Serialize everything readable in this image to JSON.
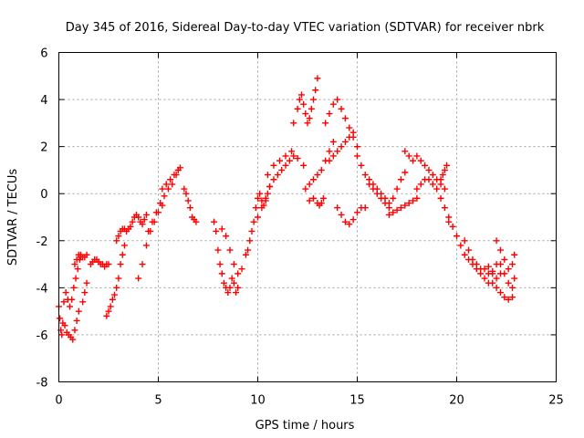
{
  "chart_data": {
    "type": "scatter",
    "title": "Day 345 of 2016, Sidereal Day-to-day VTEC variation (SDTVAR) for receiver nbrk",
    "xlabel": "GPS time / hours",
    "ylabel": "SDTVAR / TECUs",
    "xlim": [
      0,
      25
    ],
    "ylim": [
      -8,
      6
    ],
    "xticks": [
      "0",
      "5",
      "10",
      "15",
      "20",
      "25"
    ],
    "yticks": [
      "-8",
      "-6",
      "-4",
      "-2",
      "0",
      "2",
      "4",
      "6"
    ],
    "grid": true,
    "marker": "plus",
    "color": "#ff0000",
    "series": [
      {
        "name": "nbrk",
        "x": [
          0.0,
          0.05,
          0.1,
          0.15,
          0.2,
          0.25,
          0.35,
          0.45,
          0.55,
          0.65,
          0.75,
          0.85,
          0.95,
          1.05,
          1.1,
          0.3,
          0.4,
          0.5,
          0.6,
          0.7,
          0.8,
          0.9,
          1.0,
          1.2,
          1.3,
          1.4,
          0.8,
          0.9,
          1.0,
          1.1,
          1.2,
          1.3,
          1.4,
          1.6,
          1.7,
          1.8,
          1.9,
          2.0,
          2.1,
          2.2,
          2.3,
          2.4,
          2.5,
          2.4,
          2.5,
          2.6,
          2.7,
          2.8,
          2.9,
          3.0,
          3.1,
          3.2,
          3.3,
          2.9,
          3.0,
          3.1,
          3.2,
          3.3,
          3.4,
          3.5,
          3.6,
          3.7,
          3.8,
          3.9,
          4.0,
          4.1,
          4.2,
          4.3,
          4.4,
          4.0,
          4.2,
          4.4,
          4.6,
          4.8,
          5.0,
          5.2,
          4.5,
          4.7,
          4.9,
          5.1,
          5.3,
          5.5,
          5.7,
          5.9,
          6.0,
          6.1,
          5.2,
          5.4,
          5.6,
          5.8,
          6.0,
          6.3,
          6.4,
          6.5,
          6.6,
          6.7,
          6.8,
          6.9,
          7.8,
          7.9,
          8.0,
          8.1,
          8.2,
          8.3,
          8.4,
          8.5,
          8.6,
          8.7,
          8.8,
          8.9,
          9.0,
          8.2,
          8.4,
          8.6,
          8.8,
          9.0,
          9.2,
          9.4,
          9.5,
          9.6,
          9.7,
          9.8,
          9.9,
          10.0,
          10.1,
          10.2,
          10.3,
          10.4,
          10.5,
          10.6,
          10.0,
          10.2,
          10.4,
          10.6,
          10.8,
          11.0,
          11.2,
          11.4,
          11.6,
          11.8,
          10.5,
          10.8,
          11.1,
          11.4,
          11.7,
          12.0,
          12.3,
          11.8,
          12.0,
          12.1,
          12.2,
          12.3,
          12.4,
          12.5,
          12.6,
          12.7,
          12.8,
          12.9,
          13.0,
          12.4,
          12.6,
          12.8,
          13.0,
          13.2,
          13.4,
          13.6,
          13.8,
          12.6,
          12.8,
          13.0,
          13.1,
          13.2,
          13.3,
          13.4,
          13.6,
          13.8,
          14.0,
          14.2,
          14.4,
          14.6,
          14.8,
          15.0,
          13.6,
          13.8,
          14.0,
          14.2,
          14.4,
          14.6,
          14.8,
          14.0,
          14.2,
          14.4,
          14.6,
          14.8,
          15.0,
          15.2,
          15.4,
          15.0,
          15.2,
          15.4,
          15.6,
          15.8,
          16.0,
          16.2,
          16.4,
          16.6,
          15.6,
          15.8,
          16.0,
          16.2,
          16.4,
          16.6,
          16.8,
          17.0,
          17.2,
          17.4,
          16.6,
          16.8,
          17.0,
          17.2,
          17.4,
          17.6,
          17.8,
          18.0,
          17.4,
          17.6,
          17.8,
          18.0,
          18.2,
          18.4,
          18.6,
          18.8,
          19.0,
          19.2,
          19.4,
          18.0,
          18.2,
          18.4,
          18.6,
          18.8,
          19.0,
          19.2,
          19.4,
          19.6,
          19.2,
          19.3,
          19.4,
          19.5,
          19.6,
          19.8,
          20.0,
          20.2,
          20.4,
          20.6,
          20.8,
          21.0,
          21.2,
          21.4,
          21.6,
          21.8,
          22.0,
          20.4,
          20.6,
          20.8,
          21.0,
          21.2,
          21.4,
          21.6,
          21.8,
          22.0,
          22.2,
          21.6,
          21.8,
          22.0,
          22.2,
          22.4,
          22.6,
          22.8,
          22.0,
          22.2,
          22.4,
          22.6,
          22.8,
          22.9,
          22.2,
          22.4,
          22.6,
          22.8,
          22.9
        ],
        "y": [
          -4.8,
          -5.3,
          -5.8,
          -6.0,
          -5.5,
          -4.6,
          -4.2,
          -4.5,
          -4.8,
          -4.5,
          -4.0,
          -3.6,
          -3.2,
          -2.8,
          -2.7,
          -5.6,
          -5.9,
          -6.0,
          -6.1,
          -6.2,
          -5.8,
          -5.4,
          -5.0,
          -4.6,
          -4.2,
          -3.8,
          -3.0,
          -2.8,
          -2.6,
          -2.6,
          -2.7,
          -2.7,
          -2.6,
          -3.0,
          -2.9,
          -2.8,
          -2.8,
          -2.9,
          -3.0,
          -3.0,
          -3.1,
          -3.0,
          -3.0,
          -5.2,
          -5.0,
          -4.8,
          -4.5,
          -4.3,
          -4.0,
          -3.6,
          -3.0,
          -2.6,
          -2.2,
          -2.0,
          -1.8,
          -1.6,
          -1.5,
          -1.5,
          -1.6,
          -1.5,
          -1.4,
          -1.2,
          -1.0,
          -0.9,
          -1.0,
          -1.2,
          -1.3,
          -1.1,
          -0.9,
          -3.6,
          -3.0,
          -2.2,
          -1.6,
          -1.2,
          -0.8,
          -0.5,
          -1.6,
          -1.2,
          -0.8,
          -0.4,
          -0.1,
          0.2,
          0.4,
          0.8,
          1.0,
          1.1,
          0.2,
          0.4,
          0.6,
          0.8,
          1.0,
          0.2,
          0.0,
          -0.3,
          -0.6,
          -1.0,
          -1.1,
          -1.2,
          -1.2,
          -1.6,
          -2.4,
          -3.0,
          -3.4,
          -3.8,
          -4.0,
          -4.2,
          -4.0,
          -3.6,
          -3.8,
          -4.2,
          -4.0,
          -1.5,
          -1.8,
          -2.4,
          -3.0,
          -3.4,
          -3.2,
          -2.6,
          -2.4,
          -2.0,
          -1.6,
          -1.2,
          -0.6,
          -0.2,
          0.0,
          -0.3,
          -0.5,
          -0.3,
          0.0,
          0.3,
          -1.0,
          -0.6,
          -0.2,
          0.3,
          0.6,
          0.8,
          1.0,
          1.2,
          1.4,
          1.6,
          0.8,
          1.2,
          1.4,
          1.6,
          1.8,
          1.5,
          1.2,
          3.0,
          3.6,
          4.0,
          4.2,
          3.8,
          3.4,
          3.0,
          3.2,
          3.6,
          4.0,
          4.4,
          4.9,
          0.2,
          0.4,
          0.6,
          0.8,
          1.0,
          1.4,
          1.8,
          2.2,
          -0.3,
          -0.2,
          -0.4,
          -0.5,
          -0.4,
          -0.2,
          3.0,
          3.4,
          3.8,
          4.0,
          3.6,
          3.2,
          2.8,
          2.4,
          2.0,
          1.4,
          1.6,
          1.8,
          2.0,
          2.2,
          2.4,
          2.6,
          -0.6,
          -0.9,
          -1.2,
          -1.3,
          -1.1,
          -0.8,
          -0.6,
          -0.6,
          1.6,
          1.2,
          0.8,
          0.4,
          0.2,
          0.0,
          -0.2,
          -0.4,
          -0.6,
          0.6,
          0.4,
          0.2,
          0.0,
          -0.2,
          -0.4,
          -0.2,
          0.2,
          0.6,
          0.9,
          -0.9,
          -0.8,
          -0.7,
          -0.6,
          -0.5,
          -0.4,
          -0.3,
          -0.2,
          1.8,
          1.6,
          1.4,
          1.6,
          1.4,
          1.2,
          1.0,
          0.8,
          0.6,
          0.4,
          0.2,
          0.2,
          0.4,
          0.6,
          0.6,
          0.4,
          0.2,
          -0.2,
          -0.6,
          -1.0,
          0.6,
          0.8,
          1.0,
          1.2,
          -1.2,
          -1.4,
          -1.8,
          -2.2,
          -2.6,
          -2.8,
          -3.0,
          -3.2,
          -3.4,
          -3.6,
          -3.8,
          -3.4,
          -3.0,
          -2.0,
          -2.4,
          -2.8,
          -3.0,
          -3.2,
          -3.2,
          -3.1,
          -3.3,
          -3.6,
          -3.4,
          -3.4,
          -3.8,
          -4.0,
          -4.2,
          -4.4,
          -4.5,
          -4.4,
          -2.0,
          -2.4,
          -2.8,
          -3.2,
          -3.0,
          -2.6,
          -3.0,
          -3.4,
          -3.8,
          -4.0,
          -3.6
        ]
      }
    ]
  }
}
